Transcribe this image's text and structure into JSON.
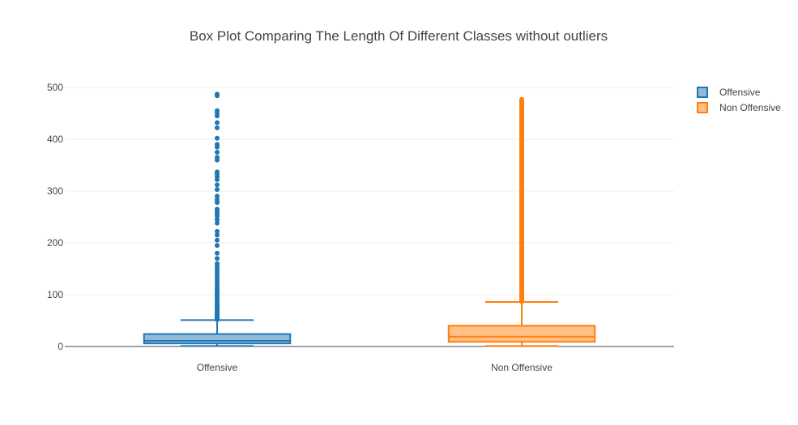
{
  "chart_data": {
    "type": "box",
    "title": "Box Plot Comparing The Length Of Different Classes without outliers",
    "xlabel": "",
    "ylabel": "",
    "ylim": [
      0,
      500
    ],
    "yticks": [
      0,
      100,
      200,
      300,
      400,
      500
    ],
    "grid": true,
    "legend_position": "top-right",
    "categories": [
      "Offensive",
      "Non Offensive"
    ],
    "series": [
      {
        "name": "Offensive",
        "color": "#1f77b4",
        "min": 1,
        "q1": 6,
        "median": 11,
        "q3": 24,
        "whisker_high": 51,
        "outliers": [
          52,
          53,
          54,
          55,
          56,
          57,
          58,
          60,
          61,
          63,
          65,
          67,
          69,
          72,
          75,
          78,
          81,
          84,
          88,
          92,
          96,
          100,
          104,
          108,
          112,
          117,
          122,
          128,
          133,
          138,
          144,
          150,
          155,
          160,
          170,
          180,
          195,
          205,
          215,
          222,
          238,
          245,
          252,
          255,
          260,
          265,
          278,
          283,
          290,
          303,
          312,
          322,
          328,
          333,
          337,
          360,
          365,
          375,
          385,
          390,
          402,
          422,
          432,
          445,
          450,
          455,
          484,
          487
        ]
      },
      {
        "name": "Non Offensive",
        "color": "#ff7f0e",
        "min": 1,
        "q1": 9,
        "median": 19,
        "q3": 40,
        "whisker_high": 86,
        "outliers_range": [
          87,
          478
        ]
      }
    ]
  }
}
